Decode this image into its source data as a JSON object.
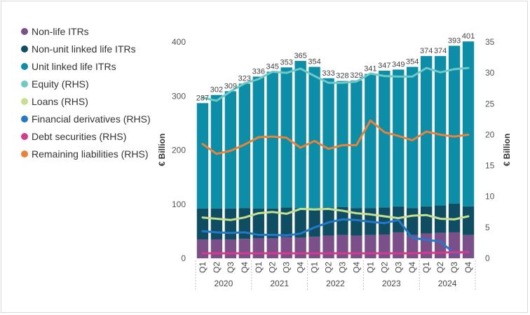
{
  "chart_data": {
    "type": "bar",
    "title": "",
    "xlabel": "",
    "ylabel": "€ Billion",
    "ylabel_right": "€ Billion",
    "ylim": [
      0,
      400
    ],
    "ylim_right": [
      0,
      35
    ],
    "y_ticks": [
      "0",
      "100",
      "200",
      "300",
      "400"
    ],
    "y_ticks_right": [
      "0",
      "5",
      "10",
      "15",
      "20",
      "25",
      "30",
      "35"
    ],
    "categories": [
      "Q1",
      "Q2",
      "Q3",
      "Q4",
      "Q1",
      "Q2",
      "Q3",
      "Q4",
      "Q1",
      "Q2",
      "Q3",
      "Q4",
      "Q1",
      "Q2",
      "Q3",
      "Q4",
      "Q1",
      "Q2",
      "Q3",
      "Q4"
    ],
    "years": [
      "2020",
      "2021",
      "2022",
      "2023",
      "2024"
    ],
    "totals": [
      287,
      302,
      309,
      323,
      336,
      345,
      353,
      365,
      354,
      333,
      328,
      329,
      341,
      347,
      349,
      354,
      374,
      374,
      393,
      401
    ],
    "total_labels": [
      "287",
      "302",
      "309",
      "323",
      "336",
      "345",
      "353",
      "365",
      "354",
      "333",
      "328",
      "329",
      "341",
      "347",
      "349",
      "354",
      "374",
      "374",
      "393",
      "401"
    ],
    "bar_series": [
      {
        "name": "Non-life ITRs",
        "color": "#7b4f8a",
        "values": [
          35,
          35,
          35,
          36,
          37,
          37,
          39,
          38,
          40,
          42,
          43,
          42,
          43,
          44,
          48,
          43,
          46,
          47,
          48,
          43
        ]
      },
      {
        "name": "Non-unit linked life ITRs",
        "color": "#0e4d62",
        "values": [
          57,
          57,
          57,
          57,
          55,
          55,
          55,
          55,
          53,
          52,
          52,
          51,
          50,
          50,
          48,
          50,
          50,
          51,
          53,
          53
        ]
      },
      {
        "name": "Unit linked life ITRs",
        "color": "#0c8da8",
        "values": [
          195,
          210,
          217,
          230,
          244,
          253,
          259,
          272,
          261,
          239,
          233,
          236,
          248,
          253,
          253,
          261,
          278,
          276,
          292,
          305
        ]
      }
    ],
    "line_series": [
      {
        "name": "Equity (RHS)",
        "color": "#6fc9c5",
        "values": [
          26.0,
          25.5,
          27.0,
          28.3,
          29.0,
          30.2,
          30.0,
          30.7,
          29.5,
          28.4,
          28.4,
          28.6,
          29.9,
          29.5,
          29.4,
          29.4,
          30.8,
          30.1,
          30.6,
          30.8
        ]
      },
      {
        "name": "Loans (RHS)",
        "color": "#c5e08e",
        "values": [
          6.6,
          6.4,
          6.2,
          6.6,
          7.3,
          7.5,
          7.2,
          8.0,
          7.9,
          8.0,
          7.7,
          7.3,
          7.1,
          6.8,
          6.5,
          6.9,
          7.0,
          6.4,
          6.3,
          6.8
        ]
      },
      {
        "name": "Financial derivatives (RHS)",
        "color": "#2478c9",
        "values": [
          4.4,
          4.2,
          4.1,
          4.2,
          3.8,
          3.8,
          3.7,
          4.0,
          5.0,
          5.8,
          6.3,
          6.2,
          5.9,
          5.7,
          6.2,
          3.3,
          3.0,
          2.7,
          0.8,
          1.1
        ]
      },
      {
        "name": "Debt securities (RHS)",
        "color": "#d8398a",
        "values": [
          0.8,
          0.8,
          0.8,
          0.8,
          0.8,
          0.8,
          0.8,
          0.8,
          0.8,
          0.8,
          0.8,
          0.8,
          0.8,
          0.8,
          0.8,
          0.8,
          0.9,
          0.9,
          1.0,
          1.0
        ]
      },
      {
        "name": "Remaining liabilities (RHS)",
        "color": "#ec8237",
        "values": [
          18.5,
          16.9,
          17.4,
          18.4,
          19.6,
          19.7,
          19.5,
          17.9,
          19.0,
          17.7,
          18.3,
          18.3,
          22.3,
          20.4,
          19.8,
          19.1,
          20.5,
          20.0,
          19.7,
          20.0
        ]
      }
    ],
    "legend_position": "left"
  }
}
